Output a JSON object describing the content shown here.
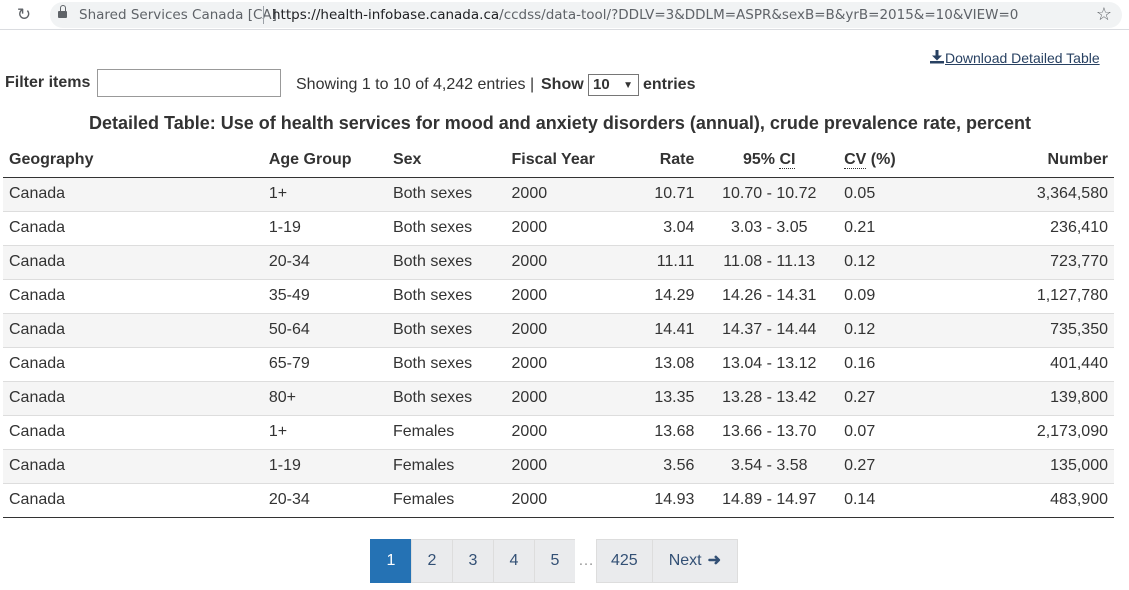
{
  "browser": {
    "site_name": "Shared Services Canada [CA]",
    "url_host": "https://health-infobase.canada.ca",
    "url_path": "/ccdss/data-tool/?DDLV=3&DDLM=ASPR&sexB=B&yrB=2015&=10&VIEW=0"
  },
  "download_label": "Download Detailed Table",
  "filter": {
    "label": "Filter items",
    "value": ""
  },
  "info_text": "Showing 1 to 10 of 4,242 entries |",
  "show": {
    "label": "Show",
    "selected": "10",
    "suffix": "entries"
  },
  "caption": "Detailed Table: Use of health services for mood and anxiety disorders (annual), crude prevalence rate, percent",
  "table": {
    "headers": {
      "geography": "Geography",
      "age_group": "Age Group",
      "sex": "Sex",
      "fiscal_year": "Fiscal Year",
      "rate": "Rate",
      "ci_prefix": "95% ",
      "ci_abbr": "CI",
      "cv_abbr": "CV",
      "cv_suffix": " (%)",
      "number": "Number"
    },
    "rows": [
      [
        "Canada",
        "1+",
        "Both sexes",
        "2000",
        "10.71",
        "10.70 - 10.72",
        "0.05",
        "3,364,580"
      ],
      [
        "Canada",
        "1-19",
        "Both sexes",
        "2000",
        "3.04",
        "3.03 - 3.05",
        "0.21",
        "236,410"
      ],
      [
        "Canada",
        "20-34",
        "Both sexes",
        "2000",
        "11.11",
        "11.08 - 11.13",
        "0.12",
        "723,770"
      ],
      [
        "Canada",
        "35-49",
        "Both sexes",
        "2000",
        "14.29",
        "14.26 - 14.31",
        "0.09",
        "1,127,780"
      ],
      [
        "Canada",
        "50-64",
        "Both sexes",
        "2000",
        "14.41",
        "14.37 - 14.44",
        "0.12",
        "735,350"
      ],
      [
        "Canada",
        "65-79",
        "Both sexes",
        "2000",
        "13.08",
        "13.04 - 13.12",
        "0.16",
        "401,440"
      ],
      [
        "Canada",
        "80+",
        "Both sexes",
        "2000",
        "13.35",
        "13.28 - 13.42",
        "0.27",
        "139,800"
      ],
      [
        "Canada",
        "1+",
        "Females",
        "2000",
        "13.68",
        "13.66 - 13.70",
        "0.07",
        "2,173,090"
      ],
      [
        "Canada",
        "1-19",
        "Females",
        "2000",
        "3.56",
        "3.54 - 3.58",
        "0.27",
        "135,000"
      ],
      [
        "Canada",
        "20-34",
        "Females",
        "2000",
        "14.93",
        "14.89 - 14.97",
        "0.14",
        "483,900"
      ]
    ]
  },
  "pagination": {
    "pages": [
      "1",
      "2",
      "3",
      "4",
      "5"
    ],
    "active": "1",
    "ellipsis": "…",
    "last_page": "425",
    "next_label": "Next"
  },
  "colors": {
    "link": "#284162",
    "active_page": "#2572b4",
    "pager_bg": "#eaebed",
    "row_stripe": "#f5f5f5"
  },
  "icons": {
    "reload": "reload-icon",
    "lock": "lock-icon",
    "star": "star-icon",
    "download": "download-icon",
    "next_arrow": "arrow-right-icon",
    "select_caret": "caret-down-icon"
  }
}
